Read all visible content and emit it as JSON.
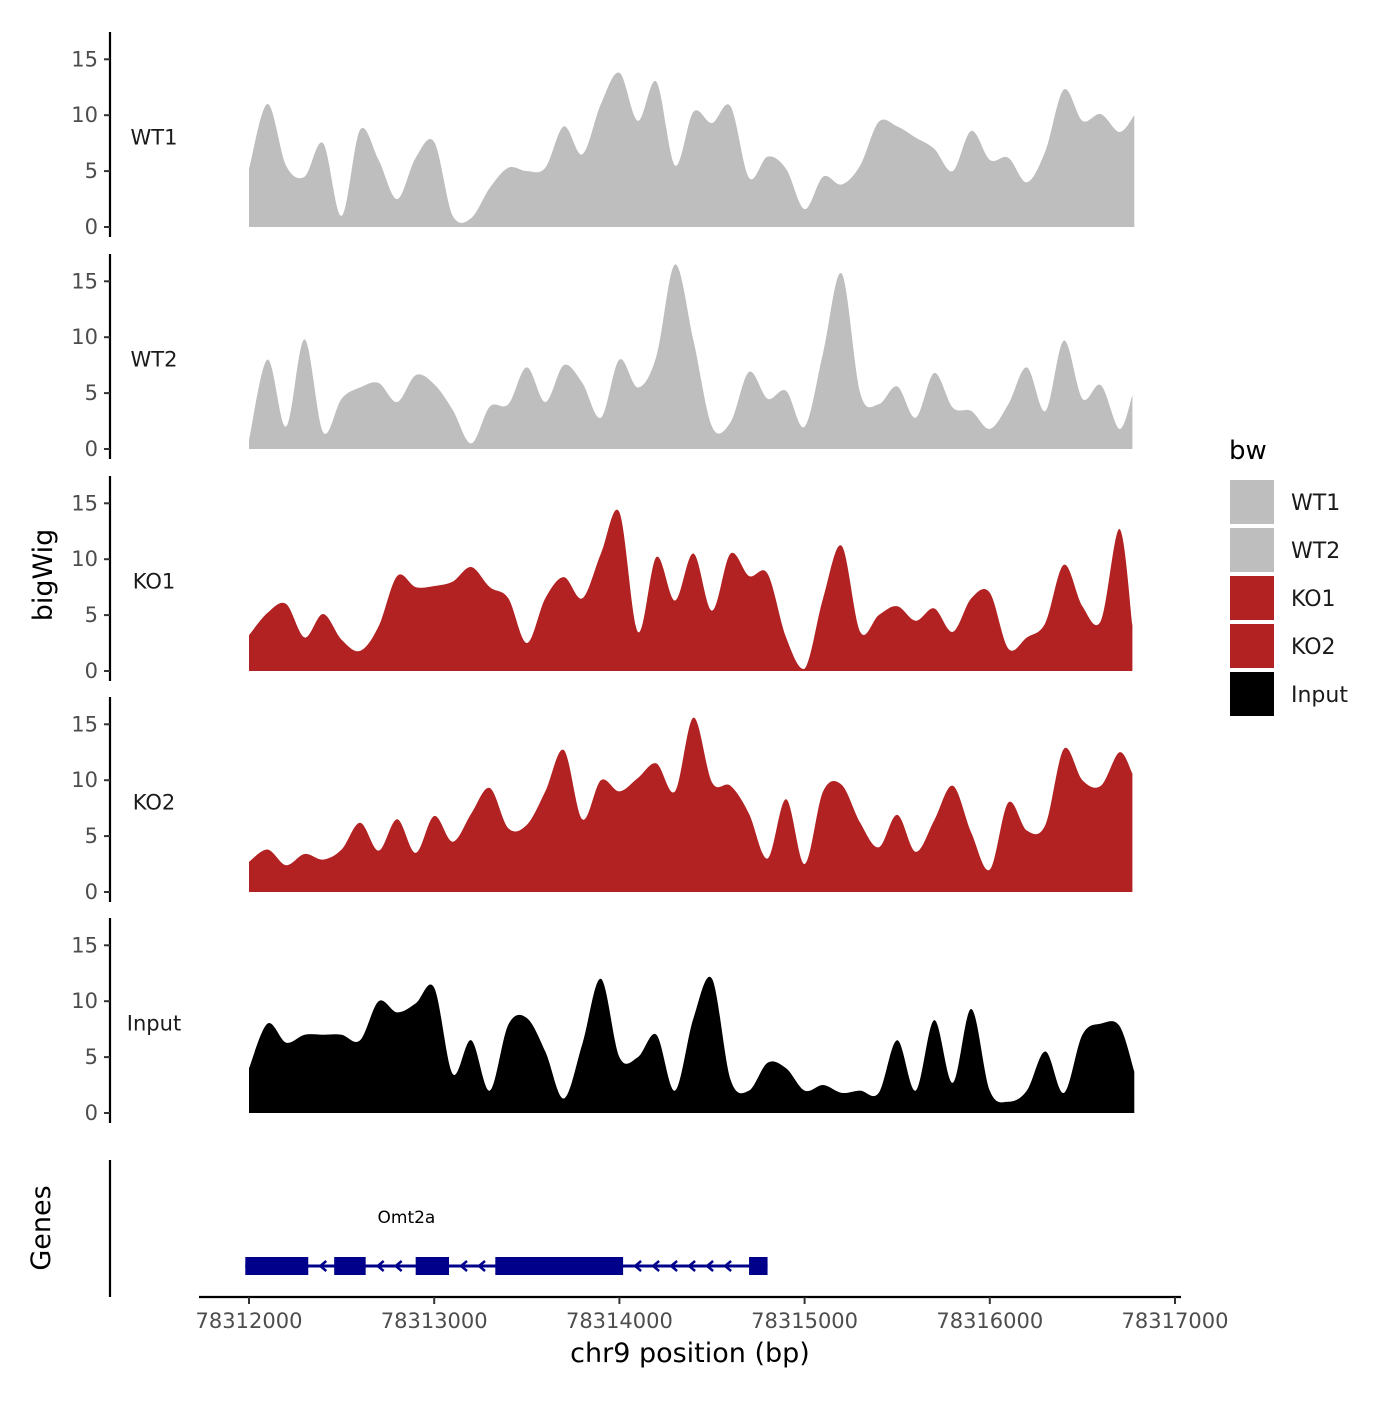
{
  "chart_data": {
    "type": "area",
    "title": "",
    "ylabel": "bigWig",
    "xlabel": "chr9 position (bp)",
    "xlim": [
      78311730,
      78317000
    ],
    "x_ticks": [
      78312000,
      78313000,
      78314000,
      78315000,
      78316000,
      78317000
    ],
    "x_tick_labels": [
      "78312000",
      "78313000",
      "78314000",
      "78315000",
      "78316000",
      "78317000"
    ],
    "ylim": [
      0,
      17
    ],
    "y_ticks": [
      0,
      5,
      10,
      15
    ],
    "y_tick_labels": [
      "0",
      "5",
      "10",
      "15"
    ],
    "legend": {
      "title": "bw",
      "position": "right",
      "entries": [
        {
          "label": "WT1",
          "color": "#bebebe"
        },
        {
          "label": "WT2",
          "color": "#bebebe"
        },
        {
          "label": "KO1",
          "color": "#b22222"
        },
        {
          "label": "KO2",
          "color": "#b22222"
        },
        {
          "label": "Input",
          "color": "#000000"
        }
      ]
    },
    "series": [
      {
        "name": "WT1",
        "color": "#bebebe",
        "x": [
          78312000,
          78312100,
          78312200,
          78312300,
          78312400,
          78312500,
          78312600,
          78312700,
          78312800,
          78312900,
          78313000,
          78313100,
          78313200,
          78313300,
          78313400,
          78313500,
          78313600,
          78313700,
          78313800,
          78313900,
          78314000,
          78314100,
          78314200,
          78314300,
          78314400,
          78314500,
          78314600,
          78314700,
          78314800,
          78314900,
          78315000,
          78315100,
          78315200,
          78315300,
          78315400,
          78315500,
          78315600,
          78315700,
          78315800,
          78315900,
          78316000,
          78316100,
          78316200,
          78316300,
          78316400,
          78316500,
          78316600,
          78316700,
          78316780
        ],
        "values": [
          5.2,
          11.0,
          5.5,
          4.5,
          7.5,
          1.0,
          8.7,
          6.0,
          2.5,
          6.2,
          7.6,
          1.0,
          0.8,
          3.5,
          5.3,
          5.0,
          5.3,
          9.0,
          6.5,
          11.0,
          13.8,
          9.5,
          13.0,
          5.5,
          10.3,
          9.3,
          10.8,
          4.4,
          6.3,
          5.2,
          1.6,
          4.5,
          3.8,
          5.5,
          9.4,
          9.0,
          8.0,
          7.0,
          5.0,
          8.6,
          6.0,
          6.2,
          4.0,
          6.8,
          12.3,
          9.5,
          10.1,
          8.5,
          10.0
        ]
      },
      {
        "name": "WT2",
        "color": "#bebebe",
        "x": [
          78312000,
          78312100,
          78312200,
          78312300,
          78312400,
          78312500,
          78312600,
          78312700,
          78312800,
          78312900,
          78313000,
          78313100,
          78313200,
          78313300,
          78313400,
          78313500,
          78313600,
          78313700,
          78313800,
          78313900,
          78314000,
          78314100,
          78314200,
          78314300,
          78314400,
          78314500,
          78314600,
          78314700,
          78314800,
          78314900,
          78315000,
          78315100,
          78315200,
          78315300,
          78315400,
          78315500,
          78315600,
          78315700,
          78315800,
          78315900,
          78316000,
          78316100,
          78316200,
          78316300,
          78316400,
          78316500,
          78316600,
          78316700,
          78316770
        ],
        "values": [
          0.8,
          8.0,
          2.0,
          9.8,
          1.5,
          4.5,
          5.5,
          5.9,
          4.2,
          6.6,
          5.8,
          3.5,
          0.5,
          3.8,
          4.0,
          7.3,
          4.2,
          7.5,
          5.9,
          2.8,
          8.0,
          5.5,
          8.3,
          16.5,
          9.7,
          2.0,
          2.4,
          6.9,
          4.5,
          5.2,
          2.0,
          8.6,
          15.7,
          5.0,
          4.0,
          5.6,
          2.8,
          6.8,
          3.7,
          3.4,
          1.8,
          4.0,
          7.3,
          3.4,
          9.7,
          4.5,
          5.7,
          1.8,
          4.8
        ]
      },
      {
        "name": "KO1",
        "color": "#b22222",
        "x": [
          78312000,
          78312100,
          78312200,
          78312300,
          78312400,
          78312500,
          78312600,
          78312700,
          78312800,
          78312900,
          78313000,
          78313100,
          78313200,
          78313300,
          78313400,
          78313500,
          78313600,
          78313700,
          78313800,
          78313900,
          78314000,
          78314100,
          78314200,
          78314300,
          78314400,
          78314500,
          78314600,
          78314700,
          78314800,
          78314900,
          78315000,
          78315100,
          78315200,
          78315300,
          78315400,
          78315500,
          78315600,
          78315700,
          78315800,
          78315900,
          78316000,
          78316100,
          78316200,
          78316300,
          78316400,
          78316500,
          78316600,
          78316700,
          78316770
        ],
        "values": [
          3.2,
          5.2,
          6.0,
          3.0,
          5.1,
          2.8,
          1.8,
          4.0,
          8.5,
          7.5,
          7.6,
          8.0,
          9.3,
          7.5,
          6.5,
          2.5,
          6.5,
          8.4,
          6.5,
          10.5,
          14.2,
          3.5,
          10.2,
          6.3,
          10.5,
          5.4,
          10.5,
          8.5,
          8.7,
          3.0,
          0.2,
          6.5,
          11.2,
          3.5,
          5.0,
          5.8,
          4.5,
          5.6,
          3.5,
          6.5,
          7.0,
          2.0,
          3.0,
          4.3,
          9.5,
          5.8,
          4.5,
          12.7,
          4.1
        ]
      },
      {
        "name": "KO2",
        "color": "#b22222",
        "x": [
          78312000,
          78312100,
          78312200,
          78312300,
          78312400,
          78312500,
          78312600,
          78312700,
          78312800,
          78312900,
          78313000,
          78313100,
          78313200,
          78313300,
          78313400,
          78313500,
          78313600,
          78313700,
          78313800,
          78313900,
          78314000,
          78314100,
          78314200,
          78314300,
          78314400,
          78314500,
          78314600,
          78314700,
          78314800,
          78314900,
          78315000,
          78315100,
          78315200,
          78315300,
          78315400,
          78315500,
          78315600,
          78315700,
          78315800,
          78315900,
          78316000,
          78316100,
          78316200,
          78316300,
          78316400,
          78316500,
          78316600,
          78316700,
          78316770
        ],
        "values": [
          2.7,
          3.8,
          2.4,
          3.4,
          2.9,
          3.8,
          6.2,
          3.7,
          6.5,
          3.5,
          6.8,
          4.5,
          7.0,
          9.3,
          5.7,
          6.0,
          9.0,
          12.7,
          6.5,
          10.0,
          9.0,
          10.2,
          11.5,
          9.0,
          15.6,
          9.8,
          9.5,
          7.0,
          3.0,
          8.3,
          2.5,
          9.0,
          9.6,
          6.2,
          4.0,
          6.9,
          3.6,
          6.4,
          9.5,
          5.3,
          2.0,
          8.0,
          5.5,
          6.0,
          12.8,
          10.0,
          9.5,
          12.5,
          10.6
        ]
      },
      {
        "name": "Input",
        "color": "#000000",
        "x": [
          78312000,
          78312100,
          78312200,
          78312300,
          78312400,
          78312500,
          78312600,
          78312700,
          78312800,
          78312900,
          78313000,
          78313100,
          78313200,
          78313300,
          78313400,
          78313500,
          78313600,
          78313700,
          78313800,
          78313900,
          78314000,
          78314100,
          78314200,
          78314300,
          78314400,
          78314500,
          78314600,
          78314700,
          78314800,
          78314900,
          78315000,
          78315100,
          78315200,
          78315300,
          78315400,
          78315500,
          78315600,
          78315700,
          78315800,
          78315900,
          78316000,
          78316100,
          78316200,
          78316300,
          78316400,
          78316500,
          78316600,
          78316700,
          78316780
        ],
        "values": [
          4.0,
          8.0,
          6.3,
          7.0,
          7.0,
          7.0,
          6.5,
          10.0,
          9.0,
          9.8,
          11.2,
          3.5,
          6.5,
          2.0,
          7.9,
          8.5,
          5.5,
          1.3,
          6.2,
          12.0,
          5.0,
          5.0,
          7.0,
          2.0,
          8.5,
          12.0,
          3.0,
          2.0,
          4.5,
          4.0,
          2.0,
          2.5,
          1.8,
          2.0,
          1.8,
          6.5,
          2.0,
          8.3,
          2.7,
          9.3,
          2.0,
          1.0,
          2.0,
          5.5,
          1.8,
          7.0,
          8.0,
          7.8,
          3.7
        ]
      }
    ],
    "genes": {
      "track_label": "Genes",
      "items": [
        {
          "name": "Omt2a",
          "strand": "-",
          "color": "#00008b",
          "start": 78311980,
          "end": 78314800,
          "exons": [
            [
              78311980,
              78312320
            ],
            [
              78312460,
              78312630
            ],
            [
              78312900,
              78313080
            ],
            [
              78313330,
              78314020
            ],
            [
              78314700,
              78314800
            ]
          ]
        }
      ]
    }
  }
}
